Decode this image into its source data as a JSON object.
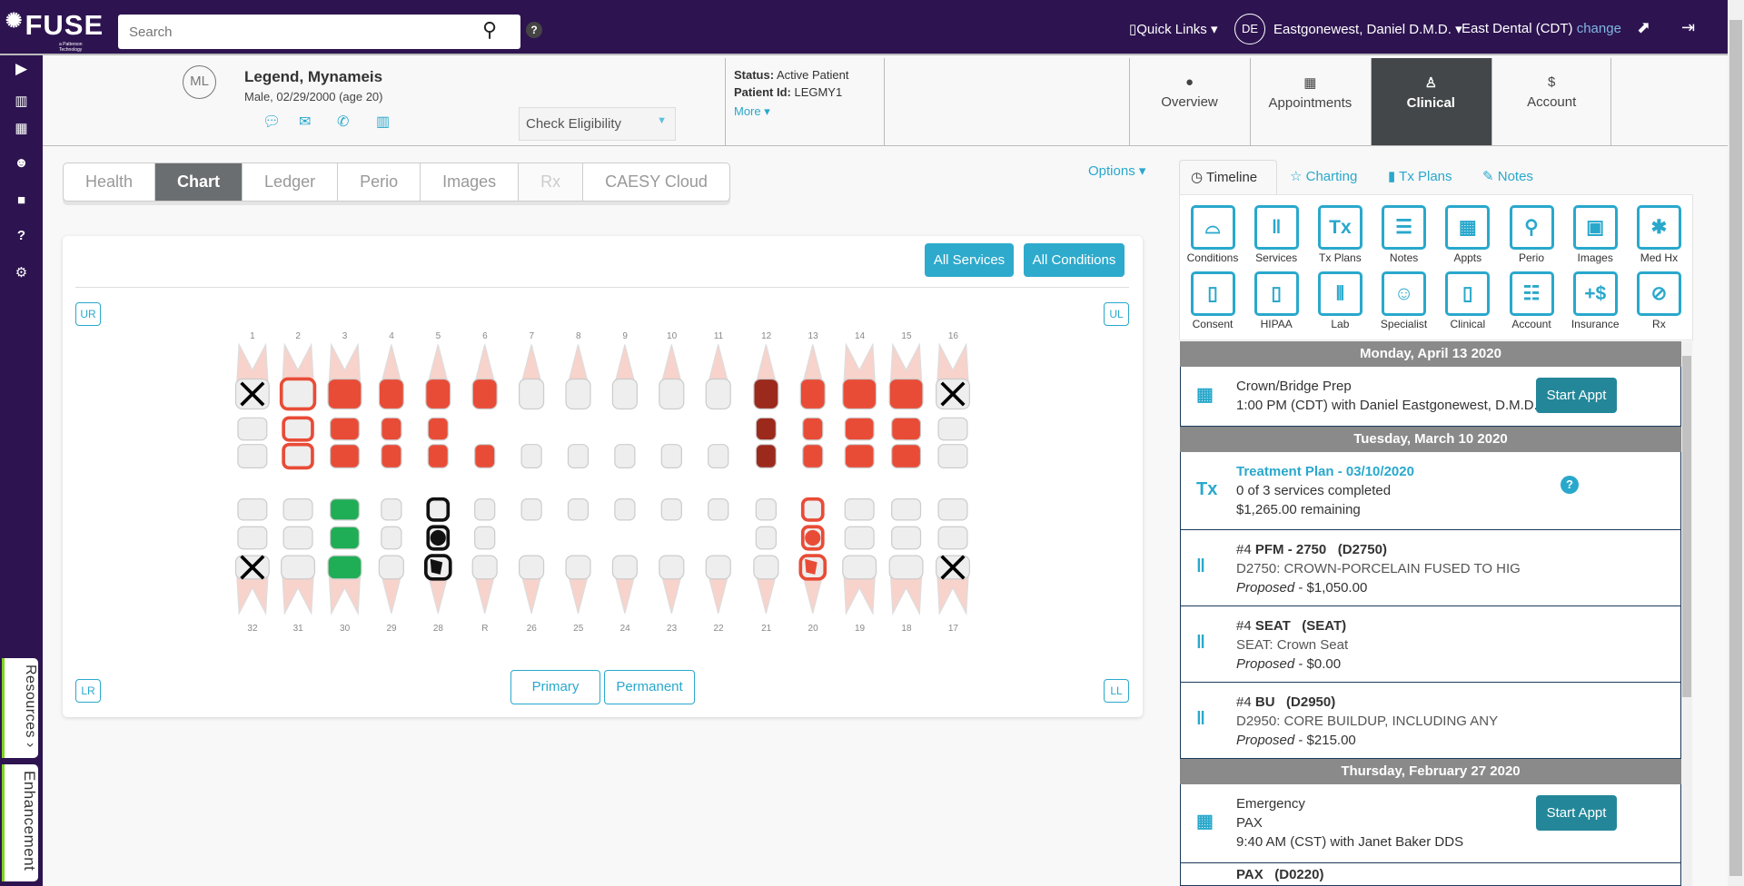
{
  "topbar": {
    "logo": "FUSE",
    "logo_tagline": "a Patterson Technology",
    "search_placeholder": "Search",
    "help": "?",
    "quick_links": "Quick Links",
    "user_initials": "DE",
    "user_name": "Eastgonewest, Daniel D.M.D.",
    "location": "East Dental (CDT)",
    "change_link": "change"
  },
  "side_tabs": {
    "resources": "Resources",
    "resources_arrow": "›",
    "enhancement": "Enhancement"
  },
  "patient": {
    "initials": "ML",
    "name": "Legend, Mynameis",
    "info": "Male, 02/29/2000 (age 20)",
    "eligibility": "Check Eligibility",
    "status_label": "Status:",
    "status_value": "Active Patient",
    "id_label": "Patient Id:",
    "id_value": "LEGMY1",
    "more": "More ▾"
  },
  "nav_tabs": [
    {
      "label": "Overview",
      "icon": "person-icon",
      "active": false
    },
    {
      "label": "Appointments",
      "icon": "calendar-icon",
      "active": false
    },
    {
      "label": "Clinical",
      "icon": "doctor-icon",
      "active": true
    },
    {
      "label": "Account",
      "icon": "dollar-icon",
      "active": false
    }
  ],
  "clinical_tabs": [
    {
      "label": "Health",
      "state": "normal"
    },
    {
      "label": "Chart",
      "state": "active"
    },
    {
      "label": "Ledger",
      "state": "normal"
    },
    {
      "label": "Perio",
      "state": "normal"
    },
    {
      "label": "Images",
      "state": "normal"
    },
    {
      "label": "Rx",
      "state": "disabled"
    },
    {
      "label": "CAESY Cloud",
      "state": "normal"
    }
  ],
  "options": "Options ▾",
  "chart": {
    "all_services": "All Services",
    "all_conditions": "All Conditions",
    "quadrants": {
      "ur": "UR",
      "ul": "UL",
      "lr": "LR",
      "ll": "LL"
    },
    "primary": "Primary",
    "permanent": "Permanent",
    "colors": {
      "red": "#e84c37",
      "darkred": "#9b2a1d",
      "green": "#1fae55",
      "black": "#111111"
    },
    "upper": [
      {
        "n": "1",
        "type": "molar",
        "missing": true
      },
      {
        "n": "2",
        "type": "molar",
        "fill": "red",
        "partial": true
      },
      {
        "n": "3",
        "type": "molar",
        "fill": "red"
      },
      {
        "n": "4",
        "type": "premolar",
        "fill": "red"
      },
      {
        "n": "5",
        "type": "premolar",
        "fill": "red"
      },
      {
        "n": "6",
        "type": "anterior",
        "fill": "red"
      },
      {
        "n": "7",
        "type": "anterior"
      },
      {
        "n": "8",
        "type": "anterior"
      },
      {
        "n": "9",
        "type": "anterior"
      },
      {
        "n": "10",
        "type": "anterior"
      },
      {
        "n": "11",
        "type": "anterior"
      },
      {
        "n": "12",
        "type": "premolar",
        "fill": "darkred"
      },
      {
        "n": "13",
        "type": "premolar",
        "fill": "red"
      },
      {
        "n": "14",
        "type": "molar",
        "fill": "red"
      },
      {
        "n": "15",
        "type": "molar",
        "fill": "red"
      },
      {
        "n": "16",
        "type": "molar",
        "missing": true
      }
    ],
    "lower": [
      {
        "n": "32",
        "type": "molar",
        "missing": true
      },
      {
        "n": "31",
        "type": "molar"
      },
      {
        "n": "30",
        "type": "molar",
        "fill": "green"
      },
      {
        "n": "29",
        "type": "premolar"
      },
      {
        "n": "28",
        "type": "premolar",
        "fill": "black",
        "partial": true
      },
      {
        "n": "R",
        "type": "premolar"
      },
      {
        "n": "26",
        "type": "anterior"
      },
      {
        "n": "25",
        "type": "anterior"
      },
      {
        "n": "24",
        "type": "anterior"
      },
      {
        "n": "23",
        "type": "anterior"
      },
      {
        "n": "22",
        "type": "anterior"
      },
      {
        "n": "21",
        "type": "premolar"
      },
      {
        "n": "20",
        "type": "premolar",
        "fill": "red",
        "partial": true
      },
      {
        "n": "19",
        "type": "molar"
      },
      {
        "n": "18",
        "type": "molar"
      },
      {
        "n": "17",
        "type": "molar",
        "missing": true
      }
    ]
  },
  "right_tabs": [
    {
      "label": "Timeline",
      "icon": "clock-icon",
      "glyph": "◷"
    },
    {
      "label": "Charting",
      "icon": "star-icon",
      "glyph": "☆"
    },
    {
      "label": "Tx Plans",
      "icon": "clipboard-icon",
      "glyph": "▮"
    },
    {
      "label": "Notes",
      "icon": "edit-icon",
      "glyph": "✎"
    }
  ],
  "icon_grid": [
    {
      "label": "Conditions",
      "icon": "tooth-icon",
      "glyph": "⌓"
    },
    {
      "label": "Services",
      "icon": "dental-tools-icon",
      "glyph": "ǁ"
    },
    {
      "label": "Tx Plans",
      "icon": "tx-clipboard-icon",
      "glyph": "Tx"
    },
    {
      "label": "Notes",
      "icon": "notes-icon",
      "glyph": "☰"
    },
    {
      "label": "Appts",
      "icon": "calendar-icon",
      "glyph": "▦"
    },
    {
      "label": "Perio",
      "icon": "perio-icon",
      "glyph": "⚲"
    },
    {
      "label": "Images",
      "icon": "xray-image-icon",
      "glyph": "▣"
    },
    {
      "label": "Med Hx",
      "icon": "medical-star-icon",
      "glyph": "✱"
    },
    {
      "label": "Consent",
      "icon": "document-icon",
      "glyph": "▯"
    },
    {
      "label": "HIPAA",
      "icon": "document-icon",
      "glyph": "▯"
    },
    {
      "label": "Lab",
      "icon": "test-tubes-icon",
      "glyph": "⫴"
    },
    {
      "label": "Specialist",
      "icon": "specialist-icon",
      "glyph": "☺"
    },
    {
      "label": "Clinical",
      "icon": "document-icon",
      "glyph": "▯"
    },
    {
      "label": "Account",
      "icon": "account-card-icon",
      "glyph": "☷"
    },
    {
      "label": "Insurance",
      "icon": "insurance-icon",
      "glyph": "+$"
    },
    {
      "label": "Rx",
      "icon": "pills-icon",
      "glyph": "⊘"
    }
  ],
  "timeline": {
    "start_appt": "Start Appt",
    "day1": "Monday, April 13 2020",
    "appt1": {
      "title": "Crown/Bridge Prep",
      "detail": "1:00 PM (CDT) with Daniel Eastgonewest, D.M.D."
    },
    "day2": "Tuesday, March 10 2020",
    "plan": {
      "title": "Treatment Plan - 03/10/2020",
      "progress": "0 of 3 services completed",
      "remaining": "$1,265.00 remaining"
    },
    "services": [
      {
        "tooth": "#4",
        "code": "PFM - 2750",
        "paren": "(D2750)",
        "desc": "D2750: CROWN-PORCELAIN FUSED TO HIG",
        "status": "Proposed",
        "amount": " - $1,050.00"
      },
      {
        "tooth": "#4",
        "code": "SEAT",
        "paren": "(SEAT)",
        "desc": "SEAT: Crown Seat",
        "status": "Proposed",
        "amount": " - $0.00"
      },
      {
        "tooth": "#4",
        "code": "BU",
        "paren": "(D2950)",
        "desc": "D2950: CORE BUILDUP, INCLUDING ANY",
        "status": "Proposed",
        "amount": " - $215.00"
      }
    ],
    "day3": "Thursday, February 27 2020",
    "appt2": {
      "title": "Emergency",
      "sub": "PAX",
      "detail": "9:40 AM (CST) with Janet Baker DDS"
    },
    "partial": {
      "code": "PAX",
      "paren": "(D0220)"
    }
  }
}
